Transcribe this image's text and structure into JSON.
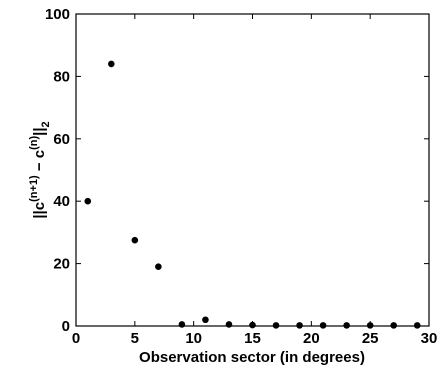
{
  "chart_data": {
    "type": "scatter",
    "title": "",
    "xlabel": "Observation sector (in degrees)",
    "ylabel": {
      "prefix": "||c",
      "sup1": "(n+1)",
      "mid": " − c",
      "sup2": "(n)",
      "suffix": "||",
      "sub": "2"
    },
    "xlim": [
      0,
      30
    ],
    "ylim": [
      0,
      100
    ],
    "xticks": [
      0,
      5,
      10,
      15,
      20,
      25,
      30
    ],
    "yticks": [
      0,
      20,
      40,
      60,
      80,
      100
    ],
    "grid": false,
    "marker_color": "#000000",
    "series": [
      {
        "x": [
          1,
          3,
          5,
          7,
          9,
          11,
          13,
          15,
          17,
          19,
          21,
          23,
          25,
          27,
          29
        ],
        "y": [
          40,
          84,
          27.5,
          19,
          0.5,
          2,
          0.5,
          0.3,
          0.2,
          0.2,
          0.2,
          0.2,
          0.2,
          0.2,
          0.2
        ]
      }
    ]
  }
}
